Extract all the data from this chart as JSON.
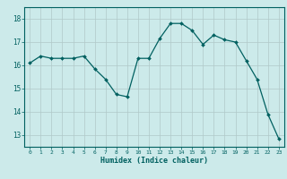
{
  "x": [
    0,
    1,
    2,
    3,
    4,
    5,
    6,
    7,
    8,
    9,
    10,
    11,
    12,
    13,
    14,
    15,
    16,
    17,
    18,
    19,
    20,
    21,
    22,
    23
  ],
  "y": [
    16.1,
    16.4,
    16.3,
    16.3,
    16.3,
    16.4,
    15.85,
    15.4,
    14.75,
    14.65,
    16.3,
    16.3,
    17.15,
    17.8,
    17.8,
    17.5,
    16.9,
    17.3,
    17.1,
    17.0,
    16.2,
    15.4,
    13.9,
    12.85
  ],
  "xlabel": "Humidex (Indice chaleur)",
  "ylim": [
    12.5,
    18.5
  ],
  "xlim": [
    -0.5,
    23.5
  ],
  "yticks": [
    13,
    14,
    15,
    16,
    17,
    18
  ],
  "xticks": [
    0,
    1,
    2,
    3,
    4,
    5,
    6,
    7,
    8,
    9,
    10,
    11,
    12,
    13,
    14,
    15,
    16,
    17,
    18,
    19,
    20,
    21,
    22,
    23
  ],
  "bg_color": "#cceaea",
  "grid_color": "#b0c8c8",
  "line_color": "#006060",
  "marker_color": "#006060"
}
